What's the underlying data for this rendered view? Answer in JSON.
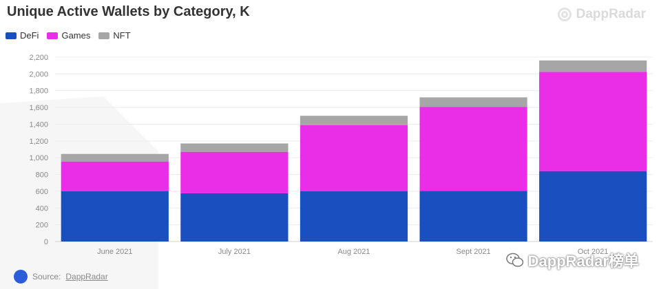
{
  "title": "Unique Active Wallets by Category, K",
  "brand": "DappRadar",
  "watermark": "DappRadar榜单",
  "source": {
    "prefix": "Source:",
    "link": "DappRadar"
  },
  "legend": [
    {
      "name": "DeFi",
      "color": "#1a4fbf"
    },
    {
      "name": "Games",
      "color": "#ea2ee8"
    },
    {
      "name": "NFT",
      "color": "#a6a6a6"
    }
  ],
  "chart_data": {
    "type": "bar",
    "stacked": true,
    "title": "Unique Active Wallets by Category, K",
    "categories": [
      "June 2021",
      "July 2021",
      "Aug 2021",
      "Sept 2021",
      "Oct 2021"
    ],
    "series": [
      {
        "name": "DeFi",
        "color": "#1a4fbf",
        "values": [
          600,
          575,
          600,
          605,
          840
        ]
      },
      {
        "name": "Games",
        "color": "#ea2ee8",
        "values": [
          355,
          495,
          790,
          1000,
          1185
        ]
      },
      {
        "name": "NFT",
        "color": "#a6a6a6",
        "values": [
          90,
          100,
          110,
          115,
          135
        ]
      }
    ],
    "ylim": [
      0,
      2200
    ],
    "yticks": [
      0,
      200,
      400,
      600,
      800,
      1000,
      1200,
      1400,
      1600,
      1800,
      2000,
      2200
    ],
    "ytick_labels": [
      "0",
      "200",
      "400",
      "600",
      "800",
      "1,000",
      "1,200",
      "1,400",
      "1,600",
      "1,800",
      "2,000",
      "2,200"
    ],
    "grid": true,
    "legend_position": "top-left"
  }
}
